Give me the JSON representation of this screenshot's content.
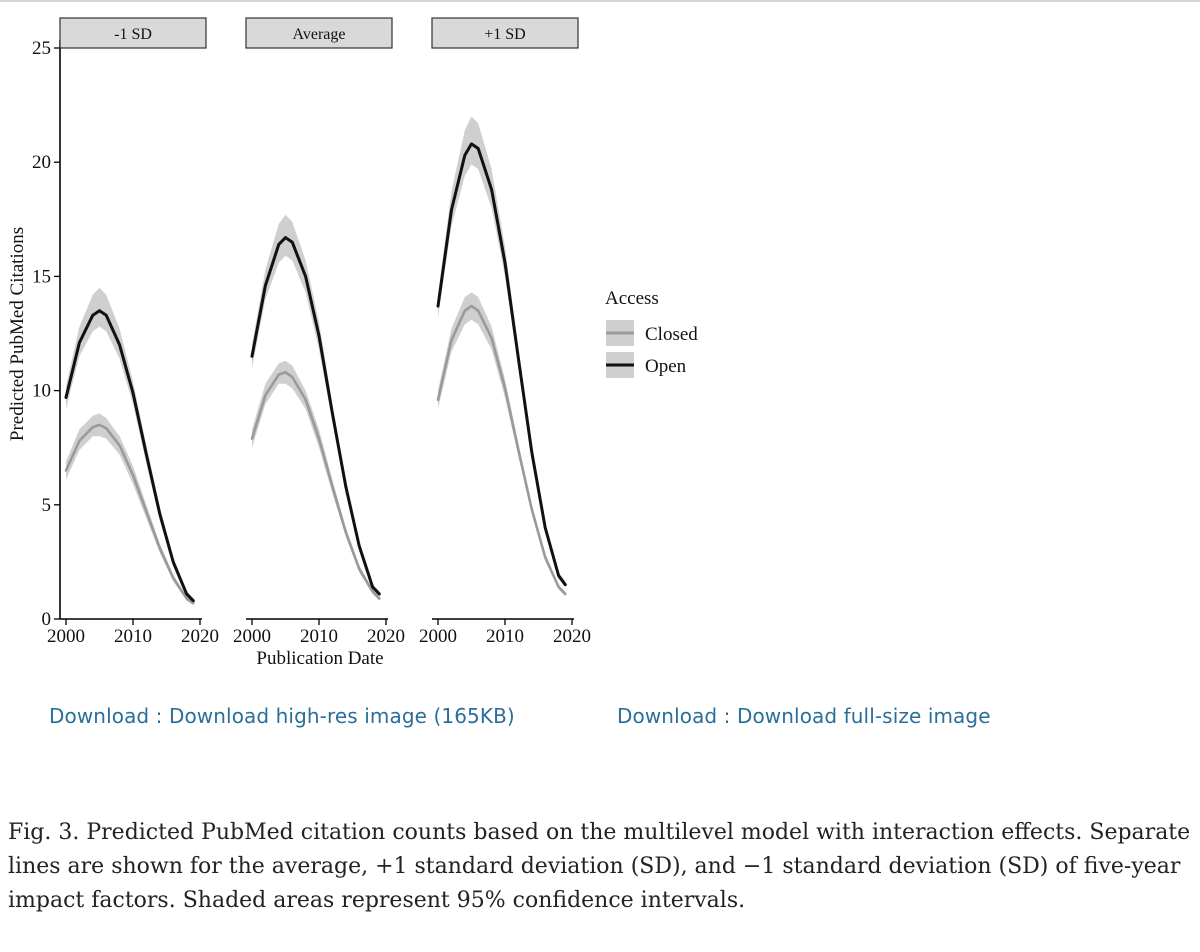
{
  "chart_data": {
    "type": "line",
    "layout": "small-multiples",
    "ylabel": "Predicted PubMed Citations",
    "xlabel": "Publication Date",
    "ylim": [
      0,
      25
    ],
    "yticks": [
      0,
      5,
      10,
      15,
      20,
      25
    ],
    "xlim": [
      2000,
      2020
    ],
    "xticks": [
      2000,
      2010,
      2020
    ],
    "legend": {
      "title": "Access",
      "placement": "right",
      "entries": [
        {
          "name": "Closed",
          "color": "#9a9a9a"
        },
        {
          "name": "Open",
          "color": "#111111"
        }
      ]
    },
    "ribbon_color": "#cfcfcf",
    "x": [
      2000,
      2002,
      2004,
      2005,
      2006,
      2008,
      2010,
      2012,
      2014,
      2016,
      2018,
      2019
    ],
    "panels": [
      {
        "label": "-1 SD",
        "series": [
          {
            "name": "Closed",
            "values": [
              6.5,
              7.8,
              8.4,
              8.5,
              8.35,
              7.6,
              6.3,
              4.7,
              3.1,
              1.8,
              0.9,
              0.7
            ],
            "lower": [
              6.1,
              7.4,
              8.0,
              8.0,
              7.9,
              7.2,
              5.9,
              4.4,
              2.9,
              1.65,
              0.8,
              0.6
            ],
            "upper": [
              6.9,
              8.3,
              8.9,
              9.0,
              8.8,
              8.0,
              6.7,
              5.0,
              3.3,
              1.95,
              1.0,
              0.8
            ]
          },
          {
            "name": "Open",
            "values": [
              9.7,
              12.1,
              13.3,
              13.5,
              13.3,
              12.0,
              9.9,
              7.2,
              4.6,
              2.5,
              1.1,
              0.8
            ],
            "lower": [
              9.2,
              11.5,
              12.6,
              12.8,
              12.6,
              11.4,
              9.4,
              6.8,
              4.3,
              2.3,
              1.0,
              0.7
            ],
            "upper": [
              10.2,
              12.8,
              14.2,
              14.5,
              14.2,
              12.7,
              10.4,
              7.6,
              4.9,
              2.7,
              1.25,
              0.9
            ]
          }
        ]
      },
      {
        "label": "Average",
        "series": [
          {
            "name": "Closed",
            "values": [
              7.9,
              9.8,
              10.7,
              10.8,
              10.6,
              9.6,
              7.9,
              5.8,
              3.8,
              2.2,
              1.2,
              0.9
            ],
            "lower": [
              7.5,
              9.4,
              10.3,
              10.3,
              10.1,
              9.2,
              7.5,
              5.5,
              3.6,
              2.05,
              1.1,
              0.8
            ],
            "upper": [
              8.3,
              10.3,
              11.2,
              11.3,
              11.1,
              10.0,
              8.3,
              6.1,
              4.0,
              2.35,
              1.3,
              1.0
            ]
          },
          {
            "name": "Open",
            "values": [
              11.5,
              14.6,
              16.4,
              16.7,
              16.5,
              15.0,
              12.4,
              9.0,
              5.8,
              3.2,
              1.4,
              1.1
            ],
            "lower": [
              11.0,
              14.0,
              15.6,
              15.9,
              15.7,
              14.3,
              11.8,
              8.6,
              5.5,
              3.0,
              1.3,
              1.0
            ],
            "upper": [
              12.0,
              15.3,
              17.3,
              17.7,
              17.4,
              15.7,
              13.0,
              9.4,
              6.1,
              3.4,
              1.55,
              1.2
            ]
          }
        ]
      },
      {
        "label": "+1 SD",
        "series": [
          {
            "name": "Closed",
            "values": [
              9.6,
              12.2,
              13.5,
              13.7,
              13.5,
              12.3,
              10.1,
              7.4,
              4.8,
              2.7,
              1.4,
              1.1
            ],
            "lower": [
              9.2,
              11.7,
              12.9,
              13.1,
              12.9,
              11.8,
              9.7,
              7.1,
              4.6,
              2.55,
              1.3,
              1.0
            ],
            "upper": [
              10.0,
              12.7,
              14.1,
              14.3,
              14.1,
              12.8,
              10.5,
              7.7,
              5.0,
              2.85,
              1.5,
              1.2
            ]
          },
          {
            "name": "Open",
            "values": [
              13.7,
              17.9,
              20.3,
              20.8,
              20.6,
              18.8,
              15.6,
              11.4,
              7.3,
              4.0,
              1.9,
              1.5
            ],
            "lower": [
              13.2,
              17.2,
              19.4,
              19.9,
              19.7,
              18.0,
              15.0,
              11.0,
              7.0,
              3.8,
              1.75,
              1.4
            ],
            "upper": [
              14.2,
              18.7,
              21.4,
              22.0,
              21.7,
              19.7,
              16.3,
              11.9,
              7.7,
              4.2,
              2.05,
              1.65
            ]
          }
        ]
      }
    ]
  },
  "downloads": {
    "high_res": "Download : Download high-res image (165KB)",
    "full_size": "Download : Download full-size image"
  },
  "caption": "Fig. 3. Predicted PubMed citation counts based on the multilevel model with interaction effects. Separate lines are shown for the average, +1 standard deviation (SD), and −1 standard deviation (SD) of five-year impact factors. Shaded areas represent 95% confidence intervals."
}
